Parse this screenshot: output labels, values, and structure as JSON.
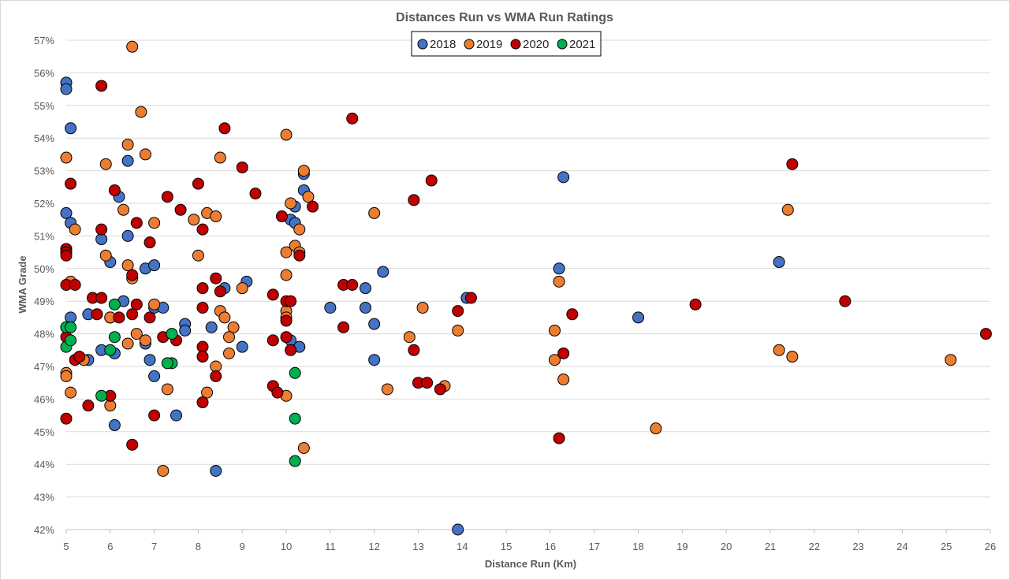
{
  "chart_data": {
    "type": "scatter",
    "title": "Distances Run vs WMA Run Ratings",
    "xlabel": "Distance Run (Km)",
    "ylabel": "WMA Grade",
    "xlim": [
      5,
      26
    ],
    "ylim": [
      42,
      57
    ],
    "x_ticks": [
      "5",
      "6",
      "7",
      "8",
      "9",
      "10",
      "11",
      "12",
      "13",
      "14",
      "15",
      "16",
      "17",
      "18",
      "19",
      "20",
      "21",
      "22",
      "23",
      "24",
      "25",
      "26"
    ],
    "y_ticks": [
      "42%",
      "43%",
      "44%",
      "45%",
      "46%",
      "47%",
      "48%",
      "49%",
      "50%",
      "51%",
      "52%",
      "53%",
      "54%",
      "55%",
      "56%",
      "57%"
    ],
    "grid": "horizontal",
    "legend_position": "top-center",
    "series": [
      {
        "name": "2018",
        "color": "#4472c4",
        "points": [
          [
            5.0,
            55.7
          ],
          [
            5.0,
            55.5
          ],
          [
            5.1,
            54.3
          ],
          [
            5.0,
            51.7
          ],
          [
            5.1,
            51.4
          ],
          [
            5.0,
            50.6
          ],
          [
            5.1,
            48.5
          ],
          [
            5.0,
            48.2
          ],
          [
            5.5,
            48.6
          ],
          [
            5.5,
            47.2
          ],
          [
            5.8,
            47.5
          ],
          [
            5.8,
            50.9
          ],
          [
            6.0,
            50.2
          ],
          [
            6.0,
            48.5
          ],
          [
            6.2,
            52.2
          ],
          [
            6.3,
            49.0
          ],
          [
            6.4,
            51.0
          ],
          [
            6.4,
            53.3
          ],
          [
            6.1,
            47.4
          ],
          [
            6.1,
            45.2
          ],
          [
            6.8,
            50.0
          ],
          [
            7.0,
            50.1
          ],
          [
            6.8,
            47.7
          ],
          [
            6.9,
            47.2
          ],
          [
            7.0,
            48.8
          ],
          [
            7.2,
            48.8
          ],
          [
            7.0,
            46.7
          ],
          [
            7.7,
            48.3
          ],
          [
            7.7,
            48.1
          ],
          [
            7.5,
            45.5
          ],
          [
            8.3,
            48.2
          ],
          [
            8.6,
            49.4
          ],
          [
            8.4,
            43.8
          ],
          [
            9.1,
            49.6
          ],
          [
            9.0,
            47.6
          ],
          [
            10.1,
            51.5
          ],
          [
            10.2,
            51.4
          ],
          [
            10.2,
            51.9
          ],
          [
            10.4,
            52.9
          ],
          [
            10.4,
            52.4
          ],
          [
            10.1,
            47.8
          ],
          [
            10.3,
            47.6
          ],
          [
            11.0,
            48.8
          ],
          [
            11.8,
            49.4
          ],
          [
            11.8,
            48.8
          ],
          [
            12.2,
            49.9
          ],
          [
            12.0,
            48.3
          ],
          [
            12.0,
            47.2
          ],
          [
            13.9,
            42.0
          ],
          [
            14.1,
            49.1
          ],
          [
            16.3,
            52.8
          ],
          [
            16.2,
            50.0
          ],
          [
            18.0,
            48.5
          ],
          [
            21.2,
            50.2
          ]
        ]
      },
      {
        "name": "2019",
        "color": "#ed7d31",
        "points": [
          [
            6.5,
            56.8
          ],
          [
            6.7,
            54.8
          ],
          [
            5.0,
            53.4
          ],
          [
            6.4,
            53.8
          ],
          [
            5.9,
            53.2
          ],
          [
            6.8,
            53.5
          ],
          [
            8.5,
            53.4
          ],
          [
            6.3,
            51.8
          ],
          [
            5.2,
            51.2
          ],
          [
            7.0,
            51.4
          ],
          [
            7.9,
            51.5
          ],
          [
            8.2,
            51.7
          ],
          [
            8.4,
            51.6
          ],
          [
            5.9,
            50.4
          ],
          [
            6.4,
            50.1
          ],
          [
            8.0,
            50.4
          ],
          [
            10.0,
            54.1
          ],
          [
            10.4,
            53.0
          ],
          [
            10.5,
            52.2
          ],
          [
            10.1,
            52.0
          ],
          [
            10.3,
            51.2
          ],
          [
            10.2,
            50.7
          ],
          [
            10.3,
            50.5
          ],
          [
            10.0,
            50.5
          ],
          [
            10.0,
            49.8
          ],
          [
            5.1,
            49.6
          ],
          [
            6.5,
            49.7
          ],
          [
            7.0,
            48.9
          ],
          [
            6.0,
            48.5
          ],
          [
            6.6,
            48.0
          ],
          [
            6.8,
            47.8
          ],
          [
            6.4,
            47.7
          ],
          [
            5.1,
            46.2
          ],
          [
            5.0,
            46.8
          ],
          [
            5.0,
            46.7
          ],
          [
            5.4,
            47.2
          ],
          [
            6.0,
            45.8
          ],
          [
            7.3,
            46.3
          ],
          [
            7.2,
            43.8
          ],
          [
            8.5,
            48.7
          ],
          [
            8.6,
            48.5
          ],
          [
            8.8,
            48.2
          ],
          [
            8.7,
            47.9
          ],
          [
            8.7,
            47.4
          ],
          [
            8.4,
            47.0
          ],
          [
            8.2,
            46.2
          ],
          [
            9.0,
            49.4
          ],
          [
            10.0,
            48.7
          ],
          [
            10.0,
            48.5
          ],
          [
            10.0,
            46.1
          ],
          [
            10.4,
            44.5
          ],
          [
            12.0,
            51.7
          ],
          [
            12.8,
            47.9
          ],
          [
            12.3,
            46.3
          ],
          [
            13.1,
            48.8
          ],
          [
            13.6,
            46.4
          ],
          [
            13.9,
            48.1
          ],
          [
            16.2,
            49.6
          ],
          [
            16.1,
            48.1
          ],
          [
            16.1,
            47.2
          ],
          [
            16.3,
            46.6
          ],
          [
            18.4,
            45.1
          ],
          [
            21.2,
            47.5
          ],
          [
            21.5,
            47.3
          ],
          [
            21.4,
            51.8
          ],
          [
            25.1,
            47.2
          ]
        ]
      },
      {
        "name": "2020",
        "color": "#c00000",
        "points": [
          [
            5.8,
            55.6
          ],
          [
            8.6,
            54.3
          ],
          [
            5.1,
            52.6
          ],
          [
            6.1,
            52.4
          ],
          [
            7.3,
            52.2
          ],
          [
            8.0,
            52.6
          ],
          [
            9.0,
            53.1
          ],
          [
            9.3,
            52.3
          ],
          [
            7.6,
            51.8
          ],
          [
            6.6,
            51.4
          ],
          [
            5.8,
            51.2
          ],
          [
            8.1,
            51.2
          ],
          [
            6.9,
            50.8
          ],
          [
            5.0,
            50.6
          ],
          [
            5.0,
            50.5
          ],
          [
            5.0,
            50.4
          ],
          [
            6.5,
            49.8
          ],
          [
            8.4,
            49.7
          ],
          [
            5.0,
            49.5
          ],
          [
            5.2,
            49.5
          ],
          [
            5.6,
            49.1
          ],
          [
            5.8,
            49.1
          ],
          [
            6.6,
            48.9
          ],
          [
            8.1,
            49.4
          ],
          [
            8.5,
            49.3
          ],
          [
            5.7,
            48.6
          ],
          [
            6.2,
            48.5
          ],
          [
            6.5,
            48.6
          ],
          [
            6.9,
            48.5
          ],
          [
            8.1,
            48.8
          ],
          [
            7.2,
            47.9
          ],
          [
            7.5,
            47.8
          ],
          [
            8.1,
            47.6
          ],
          [
            8.1,
            47.3
          ],
          [
            5.0,
            47.9
          ],
          [
            5.2,
            47.2
          ],
          [
            5.3,
            47.3
          ],
          [
            8.4,
            46.7
          ],
          [
            5.5,
            45.8
          ],
          [
            6.0,
            46.1
          ],
          [
            7.0,
            45.5
          ],
          [
            8.1,
            45.9
          ],
          [
            5.0,
            45.4
          ],
          [
            6.5,
            44.6
          ],
          [
            10.6,
            51.9
          ],
          [
            9.9,
            51.6
          ],
          [
            10.3,
            50.4
          ],
          [
            9.7,
            49.2
          ],
          [
            10.0,
            49.0
          ],
          [
            10.1,
            49.0
          ],
          [
            10.0,
            48.4
          ],
          [
            9.7,
            47.8
          ],
          [
            10.0,
            47.9
          ],
          [
            10.1,
            47.5
          ],
          [
            9.7,
            46.4
          ],
          [
            9.8,
            46.2
          ],
          [
            11.5,
            54.6
          ],
          [
            13.3,
            52.7
          ],
          [
            12.9,
            52.1
          ],
          [
            11.3,
            49.5
          ],
          [
            11.5,
            49.5
          ],
          [
            11.3,
            48.2
          ],
          [
            12.9,
            47.5
          ],
          [
            13.0,
            46.5
          ],
          [
            13.2,
            46.5
          ],
          [
            13.5,
            46.3
          ],
          [
            13.9,
            48.7
          ],
          [
            14.2,
            49.1
          ],
          [
            16.5,
            48.6
          ],
          [
            16.3,
            47.4
          ],
          [
            16.2,
            44.8
          ],
          [
            19.3,
            48.9
          ],
          [
            22.7,
            49.0
          ],
          [
            21.5,
            53.2
          ],
          [
            25.9,
            48.0
          ]
        ]
      },
      {
        "name": "2021",
        "color": "#00b050",
        "points": [
          [
            5.0,
            48.2
          ],
          [
            5.1,
            48.2
          ],
          [
            5.0,
            47.6
          ],
          [
            5.1,
            47.8
          ],
          [
            6.1,
            48.9
          ],
          [
            6.1,
            47.9
          ],
          [
            6.0,
            47.5
          ],
          [
            5.8,
            46.1
          ],
          [
            7.4,
            48.0
          ],
          [
            7.4,
            47.1
          ],
          [
            7.3,
            47.1
          ],
          [
            10.2,
            46.8
          ],
          [
            10.2,
            45.4
          ],
          [
            10.2,
            44.1
          ]
        ]
      }
    ]
  }
}
